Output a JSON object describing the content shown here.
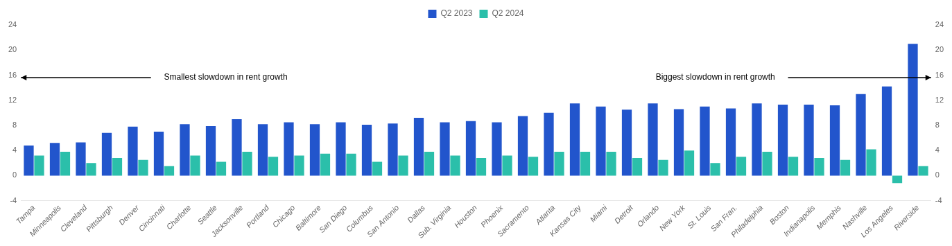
{
  "chart_data": {
    "type": "bar",
    "categories": [
      "Tampa",
      "Minneapolis",
      "Cleveland",
      "Pittsburgh",
      "Denver",
      "Cincinnati",
      "Charlotte",
      "Seattle",
      "Jacksonville",
      "Portland",
      "Chicago",
      "Baltimore",
      "San Diego",
      "Columbus",
      "San Antonio",
      "Dallas",
      "Sub. Virginia",
      "Houston",
      "Phoenix",
      "Sacramento",
      "Atlanta",
      "Kansas City",
      "Miami",
      "Detroit",
      "Orlando",
      "New York",
      "St. Louis",
      "San Fran.",
      "Philadelphia",
      "Boston",
      "Indianapolis",
      "Memphis",
      "Nashville",
      "Los Angeles",
      "Riverside"
    ],
    "series": [
      {
        "name": "Q2 2023",
        "color": "#2255cc",
        "values": [
          4.8,
          5.2,
          5.3,
          6.8,
          7.8,
          7.0,
          8.2,
          7.9,
          9.0,
          8.2,
          8.5,
          8.2,
          8.5,
          8.1,
          8.3,
          9.2,
          8.5,
          8.7,
          8.5,
          9.5,
          10.0,
          11.5,
          11.0,
          10.5,
          11.5,
          10.6,
          11.0,
          10.7,
          11.5,
          11.3,
          11.3,
          11.2,
          13.0,
          14.2,
          21.0
        ]
      },
      {
        "name": "Q2 2024",
        "color": "#2bbfaa",
        "values": [
          3.2,
          3.8,
          2.0,
          2.8,
          2.5,
          1.5,
          3.2,
          2.2,
          3.8,
          3.0,
          3.2,
          3.5,
          3.5,
          2.2,
          3.2,
          3.8,
          3.2,
          2.8,
          3.2,
          3.0,
          3.8,
          3.8,
          3.8,
          2.8,
          2.5,
          4.0,
          2.0,
          3.0,
          3.8,
          3.0,
          2.8,
          2.5,
          4.2,
          -1.2,
          1.5
        ]
      }
    ],
    "ylim": [
      -4,
      24
    ],
    "yticks": [
      -4,
      0,
      4,
      8,
      12,
      16,
      20,
      24
    ],
    "y2lim": [
      -4,
      24
    ],
    "y2ticks": [
      -4,
      0,
      4,
      8,
      12,
      16,
      20,
      24
    ],
    "annotations": [
      "Smallest slowdown in rent growth",
      "Biggest slowdown in rent growth"
    ],
    "grid": false,
    "legend": "top"
  }
}
